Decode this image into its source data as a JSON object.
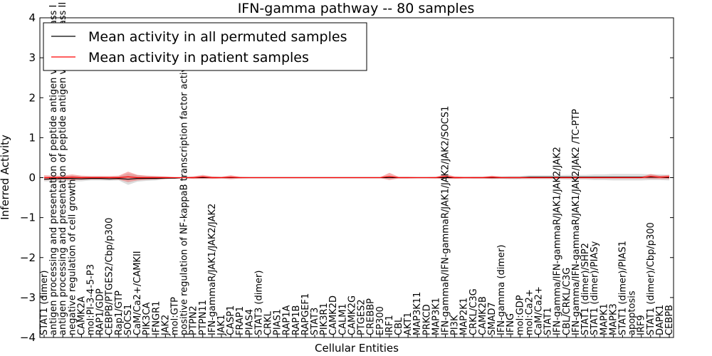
{
  "chart_data": {
    "type": "line",
    "title": "IFN-gamma pathway -- 80 samples",
    "xlabel": "Cellular Entities",
    "ylabel": "Inferred Activity",
    "ylim": [
      -4,
      4
    ],
    "yticks": [
      -4,
      -3,
      -2,
      -1,
      0,
      1,
      2,
      3,
      4
    ],
    "ytick_labels": [
      "−4",
      "−3",
      "−2",
      "−1",
      "0",
      "1",
      "2",
      "3",
      "4"
    ],
    "legend_position": "upper-left",
    "categories": [
      "STAT1 (dimer)",
      "antigen processing and presentation of peptide antigen via MHC class I",
      "antigen processing and presentation of peptide antigen via MHC class II",
      "negative regulation of cell growth",
      "CAMK2A",
      "mol:PI-3-4-5-P3",
      "RAP1/GDP",
      "CEBPB/PTGES2/Cbp/p300",
      "Rap1/GTP",
      "SOCS1",
      "CaM/Ca2+/CAMKII",
      "PIK3CA",
      "IFNGR1",
      "JAK2",
      "mol:GTP",
      "positive regulation of NF-kappaB transcription factor activity",
      "PTPN2",
      "PTPN11",
      "IFN-gammaR/JAK1/JAK2/JAK2",
      "JAK1",
      "CASP1",
      "FRAP1",
      "PIAS4",
      "STAT3 (dimer)",
      "CRKL",
      "PIAS1",
      "RAP1A",
      "RAP1B",
      "RAPGEF1",
      "STAT3",
      "PIK3R1",
      "CAMK2D",
      "CALM1",
      "CAMK2G",
      "PTGES2",
      "CREBBP",
      "EP300",
      "IRF1",
      "CBL",
      "AKT1",
      "MAP3K11",
      "PRKCD",
      "MAP3K1",
      "IFN-gammaR/IFN-gammaR/JAK1/JAK2/JAK2/SOCS1",
      "PI3K",
      "MAP2K1",
      "CRKL/C3G",
      "CAMK2B",
      "SMAD7",
      "IFN-gamma (dimer)",
      "IFNG",
      "mol:GDP",
      "mol:Ca2+",
      "CaM/Ca2+",
      "STAT1",
      "IFN-gamma/IFN-gammaR/JAK1/JAK2/JAK2",
      "CBL/CRKL/C3G",
      "IFN-gamma/IFN-gammaR/JAK1/JAK2/JAK2  /TC-PTP",
      "STAT1 (dimer)/SHP2",
      "STAT1 (dimer)/PIASy",
      "MAPK1",
      "MAPK3",
      "STAT1 (dimer)/PIAS1",
      "apoptosis",
      "IRF9",
      "STAT1 (dimer)/Cbp/p300",
      "DAPK1",
      "CEBPB"
    ],
    "series": [
      {
        "name": "Mean activity in all permuted samples",
        "color": "#000000",
        "values": [
          -0.04,
          -0.03,
          -0.02,
          -0.02,
          -0.03,
          -0.02,
          -0.02,
          -0.03,
          -0.02,
          -0.04,
          -0.02,
          -0.02,
          -0.02,
          -0.01,
          -0.01,
          0.0,
          0.0,
          0.0,
          0.0,
          0.0,
          0.0,
          0.0,
          0.0,
          0.0,
          0.0,
          0.0,
          0.0,
          0.0,
          0.0,
          0.0,
          0.0,
          0.0,
          0.0,
          0.0,
          0.0,
          0.0,
          0.0,
          0.0,
          0.0,
          0.0,
          0.0,
          0.0,
          0.0,
          0.0,
          0.0,
          0.0,
          0.0,
          0.0,
          0.0,
          0.0,
          0.0,
          0.0,
          0.01,
          0.01,
          0.01,
          0.01,
          0.01,
          0.01,
          0.01,
          0.01,
          0.01,
          0.01,
          0.01,
          0.01,
          0.01,
          0.01,
          0.01,
          0.0
        ],
        "band": [
          0.05,
          0.06,
          0.06,
          0.07,
          0.06,
          0.05,
          0.05,
          0.05,
          0.05,
          0.14,
          0.08,
          0.06,
          0.05,
          0.03,
          0.02,
          0.01,
          0.01,
          0.01,
          0.01,
          0.01,
          0.01,
          0.01,
          0.01,
          0.01,
          0.01,
          0.01,
          0.01,
          0.01,
          0.01,
          0.01,
          0.01,
          0.01,
          0.01,
          0.01,
          0.01,
          0.01,
          0.01,
          0.01,
          0.01,
          0.01,
          0.01,
          0.01,
          0.01,
          0.01,
          0.01,
          0.01,
          0.02,
          0.02,
          0.03,
          0.03,
          0.04,
          0.04,
          0.05,
          0.05,
          0.05,
          0.05,
          0.06,
          0.06,
          0.06,
          0.07,
          0.07,
          0.08,
          0.08,
          0.08,
          0.08,
          0.07,
          0.07,
          0.07
        ]
      },
      {
        "name": "Mean activity in patient samples",
        "color": "#ff0000",
        "values": [
          0.0,
          0.0,
          0.0,
          0.01,
          0.0,
          0.0,
          0.0,
          0.0,
          0.0,
          0.02,
          0.0,
          0.0,
          0.0,
          0.0,
          0.0,
          0.0,
          0.0,
          0.02,
          0.0,
          0.0,
          0.01,
          0.0,
          0.0,
          0.0,
          0.0,
          0.0,
          0.0,
          0.0,
          0.0,
          0.0,
          0.0,
          0.0,
          0.0,
          0.0,
          0.0,
          0.0,
          0.0,
          0.03,
          0.0,
          0.0,
          0.0,
          0.0,
          0.0,
          0.03,
          0.0,
          0.0,
          0.0,
          0.0,
          0.01,
          0.0,
          0.0,
          0.0,
          0.0,
          0.0,
          0.0,
          0.0,
          0.0,
          0.0,
          0.0,
          0.0,
          0.0,
          0.0,
          0.0,
          0.0,
          0.0,
          0.03,
          0.01,
          0.02
        ],
        "band": [
          0.06,
          0.05,
          0.05,
          0.07,
          0.05,
          0.04,
          0.04,
          0.04,
          0.05,
          0.13,
          0.07,
          0.05,
          0.04,
          0.03,
          0.01,
          0.01,
          0.03,
          0.05,
          0.03,
          0.02,
          0.05,
          0.02,
          0.01,
          0.01,
          0.01,
          0.01,
          0.01,
          0.01,
          0.01,
          0.01,
          0.01,
          0.01,
          0.01,
          0.01,
          0.01,
          0.01,
          0.01,
          0.09,
          0.02,
          0.02,
          0.01,
          0.01,
          0.02,
          0.06,
          0.03,
          0.02,
          0.02,
          0.02,
          0.04,
          0.02,
          0.02,
          0.02,
          0.02,
          0.02,
          0.02,
          0.02,
          0.02,
          0.02,
          0.02,
          0.02,
          0.02,
          0.02,
          0.02,
          0.02,
          0.02,
          0.06,
          0.04,
          0.05
        ]
      }
    ]
  }
}
